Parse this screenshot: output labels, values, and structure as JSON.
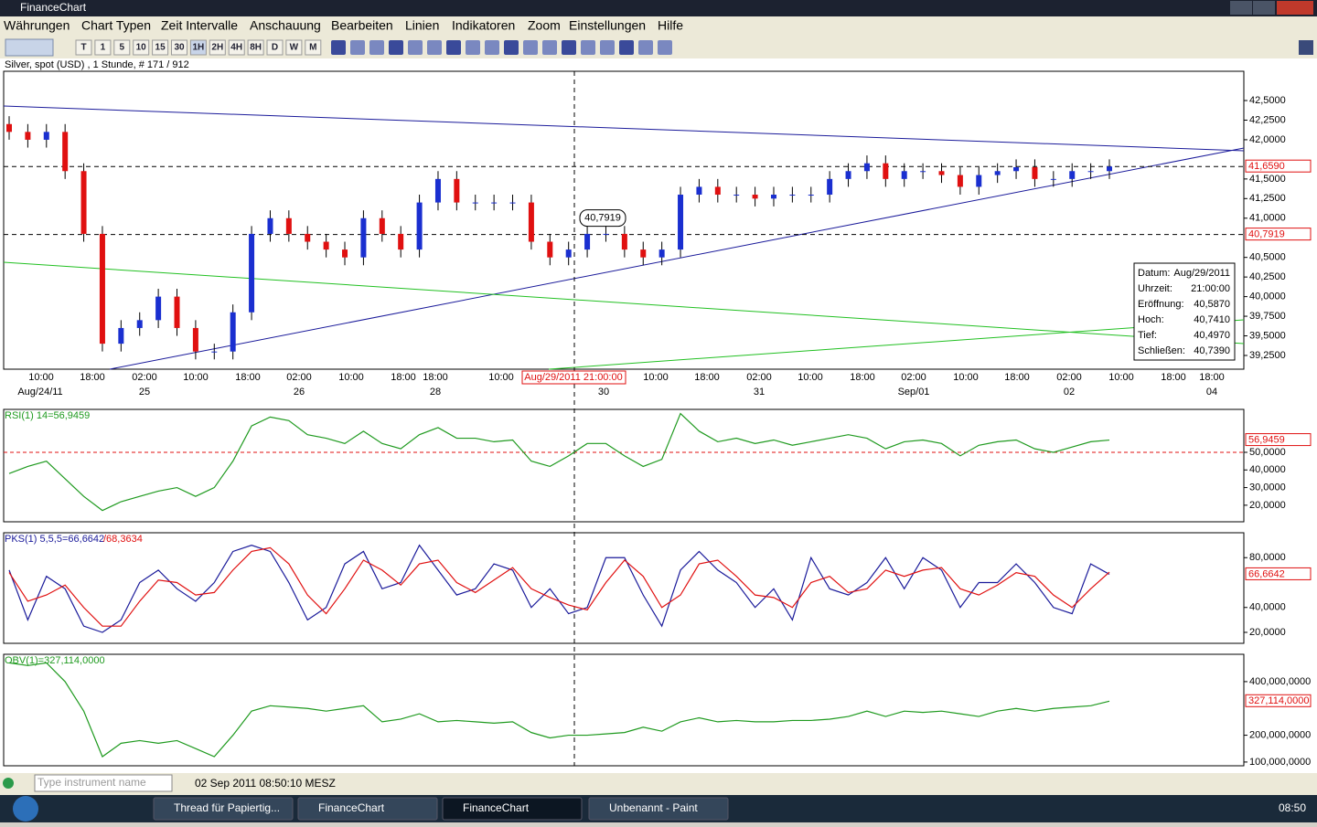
{
  "window": {
    "title": "FinanceChart"
  },
  "menu": [
    "Währungen",
    "Chart Typen",
    "Zeit Intervalle",
    "Anschauung",
    "Bearbeiten",
    "Linien",
    "Indikatoren",
    "Zoom",
    "Einstellungen",
    "Hilfe"
  ],
  "timeframes": [
    "T",
    "1",
    "5",
    "10",
    "15",
    "30",
    "1H",
    "2H",
    "4H",
    "8H",
    "D",
    "W",
    "M"
  ],
  "chart_data": [
    {
      "type": "candlestick",
      "title": "Silver, spot (USD) , 1 Stunde, # 171 / 912",
      "open": [
        42.2,
        42.1,
        42.0,
        42.1,
        41.6,
        40.8,
        39.4,
        39.6,
        39.7,
        40.0,
        39.6,
        39.3,
        39.3,
        39.8,
        40.8,
        41.0,
        40.8,
        40.7,
        40.6,
        40.5,
        41.0,
        40.8,
        40.6,
        41.2,
        41.5,
        41.2,
        41.2,
        41.2,
        41.2,
        40.7,
        40.5,
        40.6,
        40.8,
        40.8,
        40.6,
        40.5,
        40.6,
        41.3,
        41.4,
        41.3,
        41.3,
        41.25,
        41.3,
        41.3,
        41.3,
        41.5,
        41.6,
        41.7,
        41.5,
        41.6,
        41.6,
        41.55,
        41.4,
        41.55,
        41.6,
        41.65,
        41.5,
        41.5,
        41.6,
        41.6
      ],
      "high": [
        42.3,
        42.2,
        42.2,
        42.2,
        41.7,
        40.9,
        39.7,
        39.8,
        40.1,
        40.1,
        39.7,
        39.4,
        39.9,
        40.9,
        41.1,
        41.1,
        40.9,
        40.8,
        40.7,
        41.1,
        41.1,
        40.9,
        41.3,
        41.6,
        41.6,
        41.3,
        41.3,
        41.3,
        41.3,
        40.8,
        40.7,
        40.9,
        40.9,
        40.9,
        40.7,
        40.7,
        41.4,
        41.5,
        41.5,
        41.4,
        41.4,
        41.4,
        41.4,
        41.4,
        41.6,
        41.7,
        41.8,
        41.8,
        41.7,
        41.7,
        41.7,
        41.65,
        41.65,
        41.7,
        41.75,
        41.75,
        41.6,
        41.7,
        41.7,
        41.75
      ],
      "low": [
        42.0,
        41.9,
        41.9,
        41.5,
        40.7,
        39.3,
        39.3,
        39.5,
        39.6,
        39.5,
        39.2,
        39.2,
        39.2,
        39.7,
        40.7,
        40.7,
        40.6,
        40.5,
        40.4,
        40.4,
        40.7,
        40.5,
        40.5,
        41.1,
        41.1,
        41.1,
        41.1,
        41.1,
        40.6,
        40.4,
        40.4,
        40.5,
        40.7,
        40.5,
        40.4,
        40.4,
        40.5,
        41.2,
        41.2,
        41.2,
        41.15,
        41.15,
        41.2,
        41.2,
        41.2,
        41.4,
        41.5,
        41.4,
        41.4,
        41.5,
        41.45,
        41.3,
        41.3,
        41.45,
        41.5,
        41.4,
        41.4,
        41.4,
        41.5,
        41.5
      ],
      "close": [
        42.1,
        42.0,
        42.1,
        41.6,
        40.8,
        39.4,
        39.6,
        39.7,
        40.0,
        39.6,
        39.3,
        39.3,
        39.8,
        40.8,
        41.0,
        40.8,
        40.7,
        40.6,
        40.5,
        41.0,
        40.8,
        40.6,
        41.2,
        41.5,
        41.2,
        41.2,
        41.2,
        41.2,
        40.7,
        40.5,
        40.6,
        40.8,
        40.8,
        40.6,
        40.5,
        40.6,
        41.3,
        41.4,
        41.3,
        41.3,
        41.25,
        41.3,
        41.3,
        41.3,
        41.5,
        41.6,
        41.7,
        41.5,
        41.6,
        41.6,
        41.55,
        41.4,
        41.55,
        41.6,
        41.65,
        41.5,
        41.5,
        41.6,
        41.6,
        41.659
      ],
      "ylim": [
        39.075,
        42.873
      ],
      "yticks": [
        {
          "value": 39.25,
          "label": "39,2500"
        },
        {
          "value": 39.5,
          "label": "39,5000"
        },
        {
          "value": 39.75,
          "label": "39,7500"
        },
        {
          "value": 40,
          "label": "40,0000"
        },
        {
          "value": 40.25,
          "label": "40,2500"
        },
        {
          "value": 40.5,
          "label": "40,5000"
        },
        {
          "value": 41,
          "label": "41,0000"
        },
        {
          "value": 41.25,
          "label": "41,2500"
        },
        {
          "value": 41.5,
          "label": "41,5000"
        },
        {
          "value": 42,
          "label": "42,0000"
        },
        {
          "value": 42.25,
          "label": "42,2500"
        },
        {
          "value": 42.5,
          "label": "42,5000"
        }
      ],
      "last": {
        "value": 41.659,
        "label": "41,6590"
      },
      "cursor": {
        "value": 40.7919,
        "label": "40,7919",
        "time": "Aug/29/2011 21:00:00"
      },
      "up_color": "#1a2fd0",
      "down_color": "#e01010",
      "time_labels": [
        "10:00",
        "18:00",
        "02:00",
        "10:00",
        "18:00",
        "02:00",
        "10:00",
        "18:00",
        "18:00",
        "10:00",
        "10:00",
        "18:00",
        "02:00",
        "10:00",
        "18:00",
        "02:00",
        "10:00",
        "18:00",
        "02:00",
        "10:00",
        "18:00",
        "18:00"
      ],
      "date_labels": [
        "Aug/24/11",
        "25",
        "26",
        "28",
        "30",
        "31",
        "Sep/01",
        "02",
        "04"
      ],
      "tooltip": [
        [
          "Datum:",
          "Aug/29/2011"
        ],
        [
          "Uhrzeit:",
          "21:00:00"
        ],
        [
          "Eröffnung:",
          "40,5870"
        ],
        [
          "Hoch:",
          "40,7410"
        ],
        [
          "Tief:",
          "40,4970"
        ],
        [
          "Schließen:",
          "40,7390"
        ]
      ]
    },
    {
      "type": "line",
      "title": "RSI(1) 14=56,9459",
      "series": [
        {
          "name": "RSI",
          "color": "#1f9a1f",
          "values": [
            38,
            42,
            45,
            35,
            25,
            17,
            22,
            25,
            28,
            30,
            25,
            30,
            45,
            65,
            70,
            68,
            60,
            58,
            55,
            62,
            55,
            52,
            60,
            64,
            58,
            58,
            56,
            57,
            45,
            42,
            48,
            55,
            55,
            48,
            42,
            46,
            72,
            62,
            56,
            58,
            55,
            57,
            54,
            56,
            58,
            60,
            58,
            52,
            56,
            57,
            55,
            48,
            54,
            56,
            57,
            52,
            50,
            53,
            56,
            56.9459
          ]
        }
      ],
      "ylim": [
        10.6,
        74.35
      ],
      "yticks": [
        {
          "value": 20,
          "label": "20,0000"
        },
        {
          "value": 30,
          "label": "30,0000"
        },
        {
          "value": 40,
          "label": "40,0000"
        },
        {
          "value": 50,
          "label": "50,0000"
        }
      ],
      "last": {
        "value": 56.9459,
        "label": "56,9459"
      }
    },
    {
      "type": "line",
      "title": "PKS(1) 5,5,5=66,6642",
      "title2": "/68,3634",
      "series": [
        {
          "name": "K",
          "color": "#1a1a9a",
          "values": [
            70,
            30,
            65,
            55,
            25,
            20,
            30,
            60,
            70,
            55,
            45,
            60,
            85,
            90,
            85,
            60,
            30,
            40,
            75,
            85,
            55,
            60,
            90,
            70,
            50,
            55,
            75,
            70,
            40,
            55,
            35,
            40,
            80,
            80,
            50,
            25,
            70,
            85,
            70,
            60,
            40,
            55,
            30,
            80,
            55,
            50,
            60,
            80,
            55,
            80,
            70,
            40,
            60,
            60,
            75,
            60,
            40,
            35,
            75,
            66.6642
          ]
        },
        {
          "name": "D",
          "color": "#e01010",
          "values": [
            68,
            45,
            50,
            58,
            40,
            25,
            25,
            45,
            62,
            60,
            50,
            52,
            70,
            85,
            88,
            75,
            50,
            35,
            55,
            78,
            70,
            58,
            75,
            78,
            60,
            52,
            62,
            72,
            55,
            48,
            42,
            38,
            60,
            78,
            65,
            40,
            50,
            75,
            78,
            65,
            50,
            48,
            40,
            60,
            65,
            52,
            55,
            70,
            65,
            70,
            72,
            55,
            50,
            58,
            68,
            65,
            50,
            40,
            55,
            68.3634
          ]
        }
      ],
      "ylim": [
        11.2,
        100
      ],
      "yticks": [
        {
          "value": 20,
          "label": "20,0000"
        },
        {
          "value": 40,
          "label": "40,0000"
        },
        {
          "value": 80,
          "label": "80,0000"
        }
      ],
      "last": {
        "value": 66.6642,
        "label": "66,6642"
      }
    },
    {
      "type": "line",
      "title": "OBV(1)=327,114,0000",
      "series": [
        {
          "name": "OBV",
          "color": "#1f9a1f",
          "values": [
            470000000,
            460000000,
            470000000,
            400000000,
            290000000,
            120000000,
            170000000,
            180000000,
            170000000,
            180000000,
            150000000,
            120000000,
            200000000,
            290000000,
            310000000,
            305000000,
            300000000,
            290000000,
            300000000,
            310000000,
            250000000,
            260000000,
            280000000,
            250000000,
            255000000,
            250000000,
            245000000,
            250000000,
            210000000,
            190000000,
            200000000,
            200000000,
            205000000,
            210000000,
            230000000,
            215000000,
            250000000,
            265000000,
            250000000,
            255000000,
            250000000,
            250000000,
            255000000,
            255000000,
            260000000,
            270000000,
            290000000,
            270000000,
            290000000,
            285000000,
            290000000,
            280000000,
            270000000,
            290000000,
            300000000,
            290000000,
            300000000,
            305000000,
            310000000,
            327114000
          ]
        }
      ],
      "ylim": [
        86000000,
        502000000
      ],
      "yticks": [
        {
          "value": 100000000,
          "label": "100,000,0000"
        },
        {
          "value": 200000000,
          "label": "200,000,0000"
        },
        {
          "value": 400000000,
          "label": "400,000,0000"
        }
      ],
      "last": {
        "value": 327114000,
        "label": "327,114,0000"
      }
    }
  ],
  "status": {
    "placeholder": "Type instrument name",
    "datetime": "02 Sep 2011 08:50:10 MESZ"
  },
  "taskbar": {
    "items": [
      "Thread für Papiertig...",
      "FinanceChart",
      "FinanceChart",
      "Unbenannt - Paint"
    ],
    "clock": "08:50"
  }
}
